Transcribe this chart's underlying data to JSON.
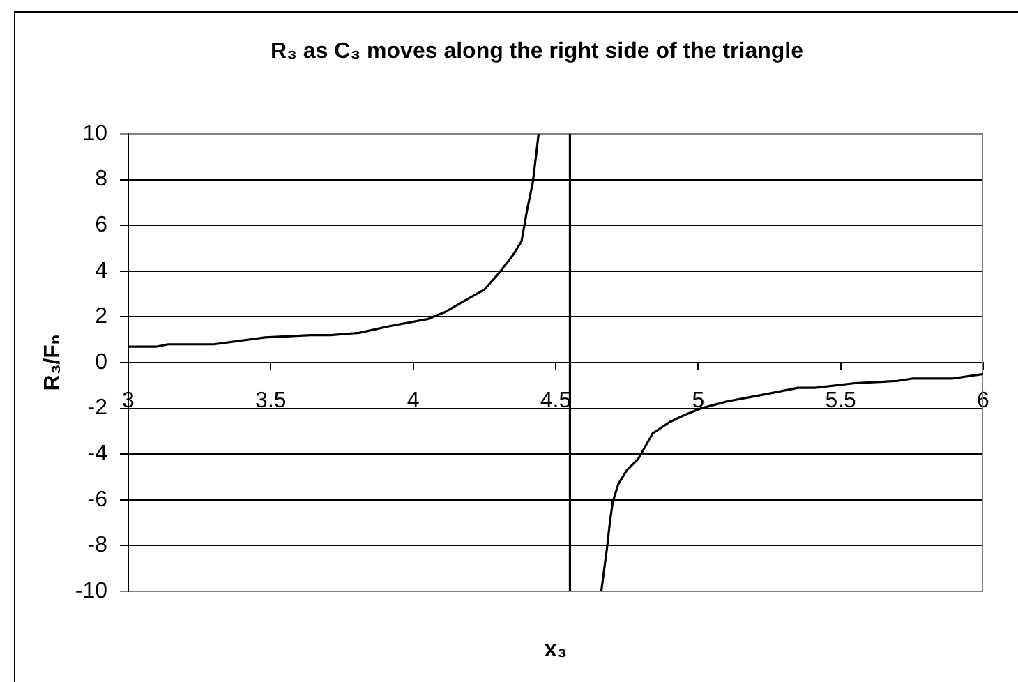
{
  "chart_data": {
    "type": "line",
    "title": "R₃ as C₃ moves along the right side of the triangle",
    "xlabel": "x₃",
    "ylabel": "R₃/Fₙ",
    "series": [
      {
        "color": "#000000",
        "x": [
          3.0,
          3.1,
          3.14,
          3.3,
          3.48,
          3.64,
          3.71,
          3.81,
          3.92,
          4.05,
          4.11,
          4.18,
          4.25,
          4.3,
          4.35,
          4.38,
          4.4,
          4.42,
          4.44
        ],
        "values": [
          0.7,
          0.7,
          0.8,
          0.8,
          1.1,
          1.2,
          1.2,
          1.3,
          1.6,
          1.9,
          2.2,
          2.7,
          3.2,
          3.9,
          4.7,
          5.3,
          6.7,
          7.9,
          10
        ]
      },
      {
        "color": "#000000",
        "x": [
          4.66,
          4.68,
          4.69,
          4.7,
          4.72,
          4.75,
          4.79,
          4.84,
          4.9,
          4.95,
          5.01,
          5.1,
          5.23,
          5.35,
          5.41,
          5.55,
          5.7,
          5.75,
          5.89,
          6.0
        ],
        "values": [
          -10,
          -8.1,
          -7.0,
          -6.1,
          -5.3,
          -4.7,
          -4.2,
          -3.1,
          -2.6,
          -2.3,
          -2.0,
          -1.7,
          -1.4,
          -1.1,
          -1.1,
          -0.9,
          -0.8,
          -0.7,
          -0.7,
          -0.5
        ]
      }
    ],
    "xlim": [
      3,
      6
    ],
    "xticks": [
      3,
      3.5,
      4,
      4.5,
      5,
      5.5,
      6
    ],
    "ylim": [
      -10,
      10
    ],
    "yticks": [
      -10,
      -8,
      -6,
      -4,
      -2,
      0,
      2,
      4,
      6,
      8,
      10
    ],
    "grid": "y",
    "legend": false,
    "marker": "none",
    "line_style": "solid",
    "ref_lines": [
      {
        "axis": "x",
        "value": 4.55,
        "color": "#000000"
      }
    ]
  }
}
